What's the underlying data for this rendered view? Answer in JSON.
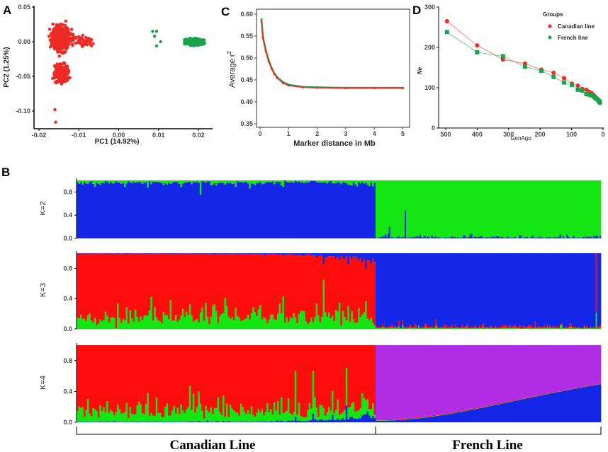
{
  "panel_labels": [
    "A",
    "B",
    "C",
    "D"
  ],
  "chart_data": [
    {
      "panel": "A",
      "type": "scatter",
      "xlabel": "PC1 (14.92%)",
      "ylabel": "PC2 (1.25%)",
      "xlim": [
        -0.022,
        0.023
      ],
      "ylim": [
        -0.125,
        0.05
      ],
      "xticks": [
        "-0.02",
        "-0.01",
        "0.00",
        "0.01",
        "0.02"
      ],
      "yticks": [
        "0.05",
        "0.00",
        "-0.05",
        "-0.10"
      ],
      "clusters": [
        {
          "color": "#ee2a24",
          "center": [
            -0.0145,
            0.005
          ],
          "spread": [
            0.0015,
            0.012
          ],
          "n": 420
        },
        {
          "color": "#ee2a24",
          "center": [
            -0.0145,
            -0.045
          ],
          "spread": [
            0.0012,
            0.01
          ],
          "n": 200
        },
        {
          "color": "#ee2a24",
          "center": [
            -0.009,
            0.0
          ],
          "spread": [
            0.002,
            0.005
          ],
          "n": 60
        },
        {
          "color": "#1aa34a",
          "center": [
            0.019,
            0.0
          ],
          "spread": [
            0.0015,
            0.003
          ],
          "n": 400
        }
      ],
      "outliers": [
        {
          "x": -0.016,
          "y": -0.098
        },
        {
          "x": -0.0158,
          "y": -0.116
        },
        {
          "x": 0.0085,
          "y": 0.015
        },
        {
          "x": 0.0095,
          "y": 0.015
        },
        {
          "x": 0.009,
          "y": 0.008
        },
        {
          "x": 0.0105,
          "y": 0.0
        },
        {
          "x": 0.0095,
          "y": -0.006
        }
      ]
    },
    {
      "panel": "C",
      "type": "line",
      "xlabel": "Marker distance in Mb",
      "ylabel": "Average r",
      "ylabel_sup": "2",
      "xlim": [
        0,
        5
      ],
      "ylim": [
        0.34,
        0.61
      ],
      "xticks": [
        "0",
        "1",
        "2",
        "3",
        "4",
        "5"
      ],
      "yticks": [
        "0.60",
        "0.55",
        "0.50",
        "0.45",
        "0.40",
        "0.35"
      ],
      "series": [
        {
          "color": "#1aa34a",
          "x": [
            0.05,
            0.1,
            0.2,
            0.3,
            0.4,
            0.5,
            0.6,
            0.8,
            1,
            1.5,
            2,
            3,
            4,
            5
          ],
          "y": [
            0.588,
            0.548,
            0.518,
            0.495,
            0.478,
            0.465,
            0.456,
            0.445,
            0.439,
            0.434,
            0.433,
            0.432,
            0.432,
            0.432
          ]
        },
        {
          "color": "#ee2a24",
          "x": [
            0.05,
            0.1,
            0.2,
            0.3,
            0.4,
            0.5,
            0.6,
            0.8,
            1,
            1.5,
            2,
            3,
            4,
            5
          ],
          "y": [
            0.583,
            0.545,
            0.515,
            0.492,
            0.476,
            0.463,
            0.454,
            0.443,
            0.437,
            0.433,
            0.432,
            0.431,
            0.431,
            0.431
          ]
        }
      ]
    },
    {
      "panel": "D",
      "type": "line",
      "xlabel": "GenAgo",
      "ylabel": "Ne",
      "xlim": [
        510,
        0
      ],
      "ylim": [
        0,
        300
      ],
      "xticks": [
        "500",
        "400",
        "300",
        "200",
        "100",
        "0"
      ],
      "yticks": [
        "300",
        "200",
        "100",
        "0"
      ],
      "legend": {
        "title": "Groups",
        "position": "top-right"
      },
      "series": [
        {
          "name": "Canadian line",
          "color": "#ee2a24",
          "marker": "circle",
          "x": [
            496,
            400,
            318,
            248,
            196,
            157,
            124,
            99,
            80,
            66,
            53,
            45,
            37,
            30,
            25,
            20,
            15,
            12,
            10
          ],
          "y": [
            265,
            205,
            170,
            160,
            145,
            137,
            124,
            110,
            105,
            97,
            95,
            90,
            87,
            82,
            78,
            74,
            70,
            65,
            62
          ]
        },
        {
          "name": "French line",
          "color": "#1aa34a",
          "marker": "square",
          "x": [
            496,
            400,
            318,
            248,
            196,
            157,
            124,
            99,
            80,
            66,
            53,
            45,
            37,
            30,
            25,
            20,
            15,
            12,
            10
          ],
          "y": [
            238,
            188,
            178,
            152,
            142,
            127,
            113,
            107,
            95,
            93,
            84,
            83,
            81,
            78,
            75,
            72,
            69,
            66,
            64
          ]
        }
      ]
    },
    {
      "panel": "B",
      "type": "bar",
      "stacked": true,
      "ylim": [
        0,
        1
      ],
      "yticks": [
        "0.8",
        "0.4",
        "0.0"
      ],
      "groups": [
        "Canadian Line",
        "French Line"
      ],
      "rows": [
        {
          "label": "K=2",
          "colors": [
            "#1426e6",
            "#14e614"
          ],
          "mean": {
            "Canadian Line": [
              0.96,
              0.04
            ],
            "French Line": [
              0.02,
              0.98
            ]
          }
        },
        {
          "label": "K=3",
          "colors": [
            "#14e614",
            "#ff0d0d",
            "#1426e6"
          ],
          "mean": {
            "Canadian Line": [
              0.15,
              0.84,
              0.01
            ],
            "French Line": [
              0.01,
              0.02,
              0.97
            ]
          }
        },
        {
          "label": "K=4",
          "colors": [
            "#1426e6",
            "#14e614",
            "#ff0d0d",
            "#b22ee6"
          ],
          "mean": {
            "Canadian Line": [
              0.02,
              0.13,
              0.85,
              0.0
            ],
            "French Line": [
              0.4,
              0.01,
              0.01,
              0.58
            ]
          }
        }
      ]
    }
  ]
}
